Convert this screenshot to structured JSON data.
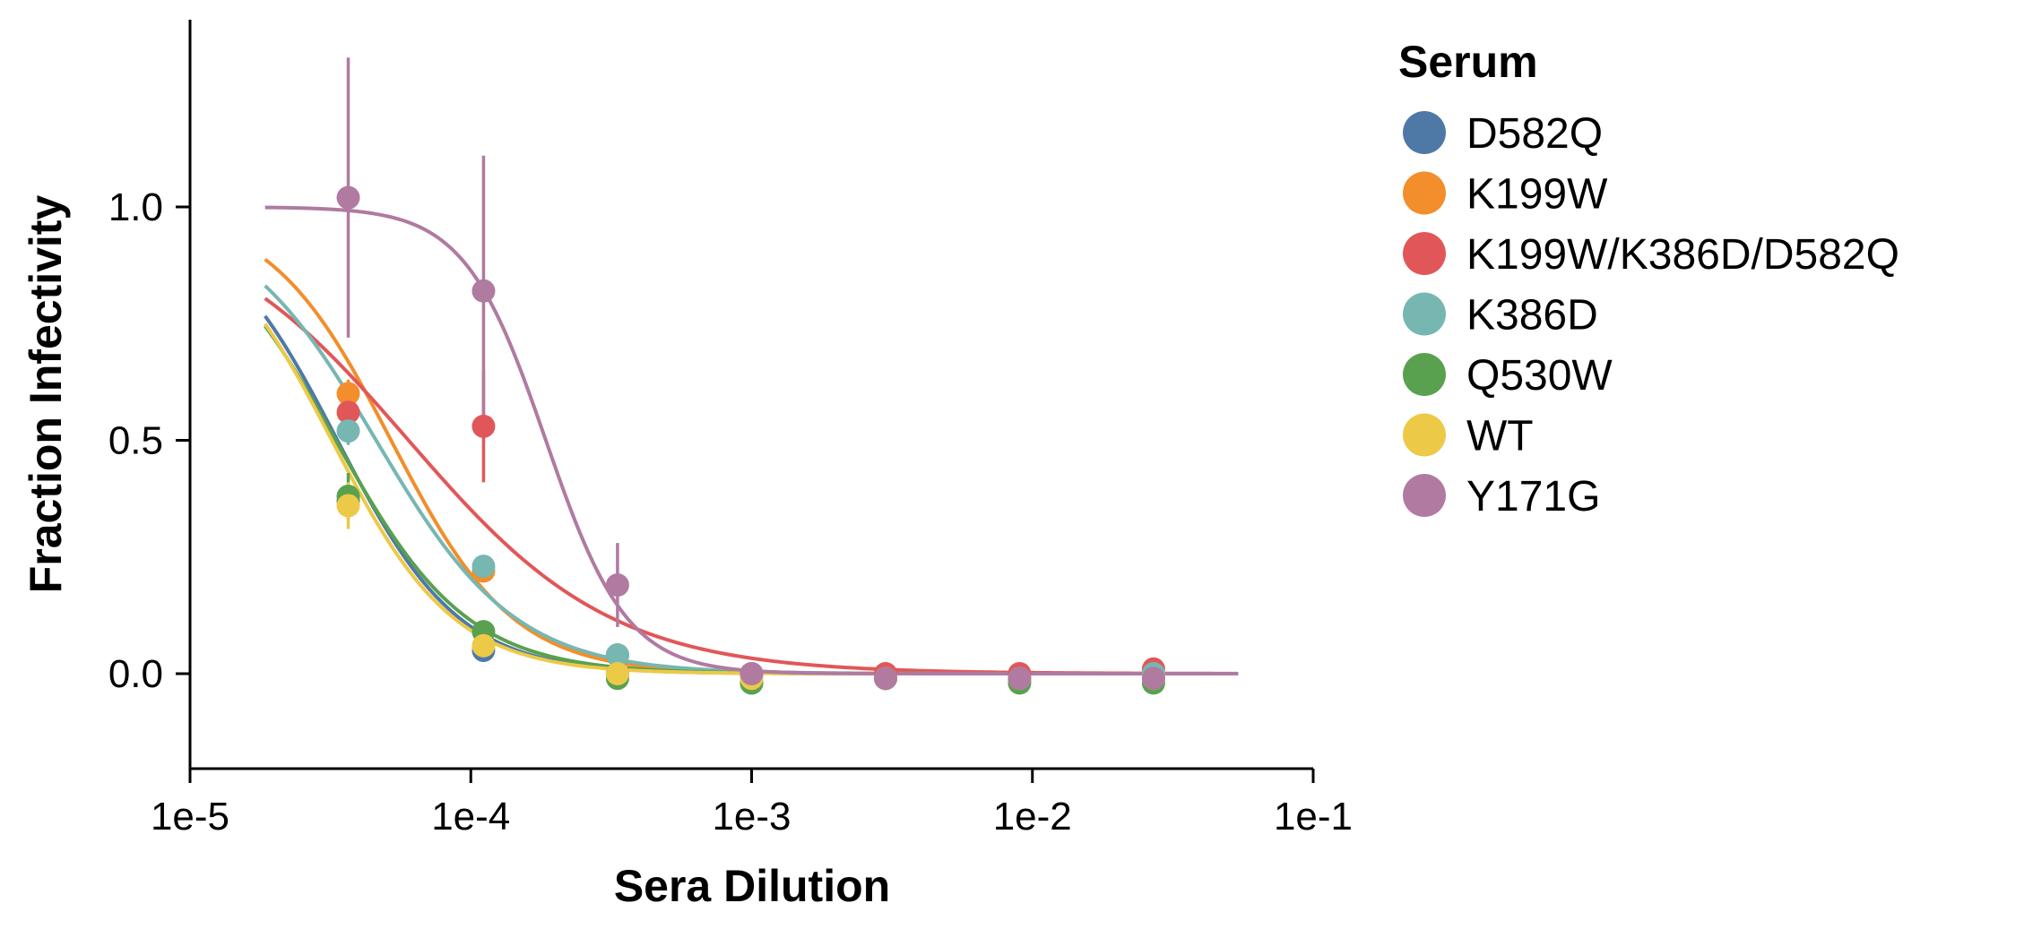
{
  "chart_data": {
    "type": "scatter",
    "xlabel": "Sera Dilution",
    "ylabel": "Fraction Infectivity",
    "x_scale": "log",
    "xlim": [
      1e-05,
      0.1
    ],
    "ylim": [
      -0.2,
      1.4
    ],
    "x_ticks": [
      1e-05,
      0.0001,
      0.001,
      0.01,
      0.1
    ],
    "x_tick_labels": [
      "1e-5",
      "1e-4",
      "1e-3",
      "1e-2",
      "1e-1"
    ],
    "y_ticks": [
      0.0,
      0.5,
      1.0
    ],
    "y_tick_labels": [
      "0.0",
      "0.5",
      "1.0"
    ],
    "grid": false,
    "legend": {
      "title": "Serum",
      "position": "right"
    },
    "x": [
      3.66e-05,
      0.000111,
      0.000333,
      0.001,
      0.003,
      0.009,
      0.027
    ],
    "series": [
      {
        "name": "D582Q",
        "color": "#4e79a7",
        "values": [
          0.37,
          0.05,
          0.0,
          -0.02,
          -0.01,
          -0.01,
          -0.01
        ],
        "errors": [
          0.03,
          0.01,
          0.01,
          0.01,
          0.01,
          0.01,
          0.01
        ],
        "fit": {
          "ic50": 3.35e-05,
          "hill": 2.0
        }
      },
      {
        "name": "K199W",
        "color": "#f28e2b",
        "values": [
          0.6,
          0.22,
          0.04,
          0.0,
          -0.01,
          -0.01,
          0.0
        ],
        "errors": [
          0.03,
          0.02,
          0.01,
          0.01,
          0.01,
          0.01,
          0.01
        ],
        "fit": {
          "ic50": 5.2e-05,
          "hill": 2.0
        }
      },
      {
        "name": "K199W/K386D/D582Q",
        "color": "#e15759",
        "values": [
          0.56,
          0.53,
          0.04,
          0.0,
          0.0,
          0.0,
          0.01
        ],
        "errors": [
          0.04,
          0.12,
          0.01,
          0.01,
          0.01,
          0.01,
          0.01
        ],
        "fit": {
          "ic50": 6e-05,
          "hill": 1.2
        }
      },
      {
        "name": "K386D",
        "color": "#76b7b2",
        "values": [
          0.52,
          0.23,
          0.04,
          0.0,
          -0.01,
          -0.01,
          0.0
        ],
        "errors": [
          0.03,
          0.02,
          0.01,
          0.01,
          0.01,
          0.01,
          0.01
        ],
        "fit": {
          "ic50": 4.6e-05,
          "hill": 1.75
        }
      },
      {
        "name": "Q530W",
        "color": "#59a14f",
        "values": [
          0.38,
          0.09,
          -0.01,
          -0.02,
          -0.01,
          -0.02,
          -0.02
        ],
        "errors": [
          0.05,
          0.01,
          0.01,
          0.01,
          0.01,
          0.01,
          0.01
        ],
        "fit": {
          "ic50": 3.3e-05,
          "hill": 1.85
        }
      },
      {
        "name": "WT",
        "color": "#edc948",
        "values": [
          0.36,
          0.06,
          0.0,
          -0.01,
          -0.01,
          -0.01,
          -0.01
        ],
        "errors": [
          0.05,
          0.01,
          0.01,
          0.01,
          0.01,
          0.01,
          0.01
        ],
        "fit": {
          "ic50": 3.2e-05,
          "hill": 2.0
        }
      },
      {
        "name": "Y171G",
        "color": "#b07aa1",
        "values": [
          1.02,
          0.82,
          0.19,
          0.0,
          -0.01,
          -0.01,
          -0.01
        ],
        "errors": [
          0.3,
          0.29,
          0.09,
          0.01,
          0.01,
          0.01,
          0.01
        ],
        "fit": {
          "ic50": 0.000185,
          "hill": 3.0
        }
      }
    ]
  }
}
